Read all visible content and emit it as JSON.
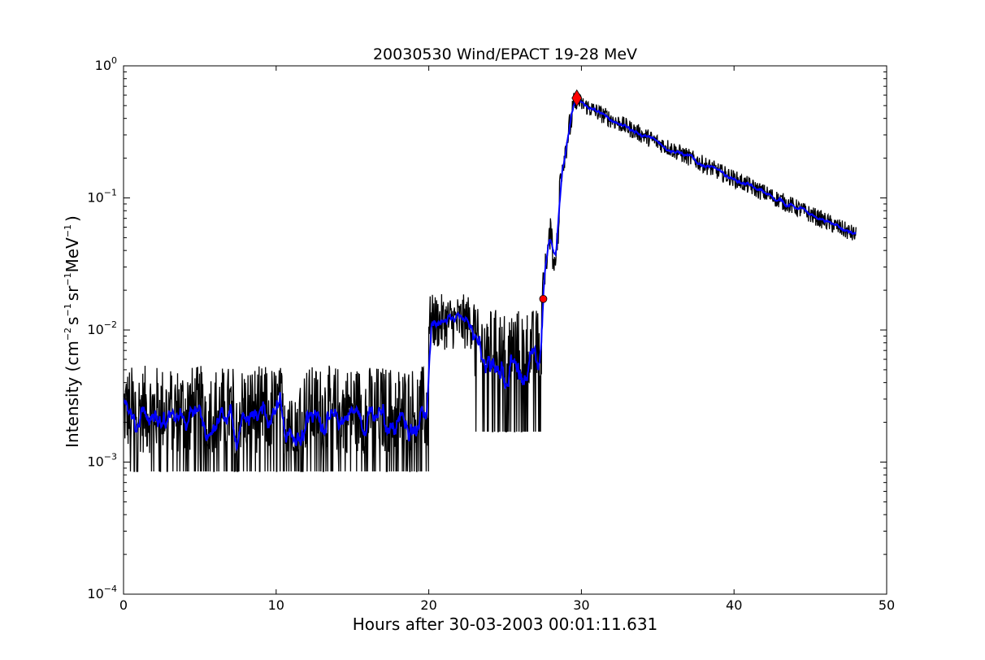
{
  "chart_data": {
    "type": "line",
    "title": "20030530 Wind/EPACT 19-28 MeV",
    "xlabel": "Hours after 30-03-2003 00:01:11.631",
    "ylabel_parts": {
      "prefix": "Intensity (cm",
      "exp1": "−2",
      "s": "s",
      "exp2": "−1",
      "sr": "sr",
      "exp3": "−1",
      "mev": "MeV",
      "exp4": "−1",
      "suffix": ")"
    },
    "xlim": [
      0,
      50
    ],
    "ylim": [
      0.0001,
      1
    ],
    "yscale": "log",
    "x_ticks": [
      {
        "value": 0,
        "label": "0"
      },
      {
        "value": 10,
        "label": "10"
      },
      {
        "value": 20,
        "label": "20"
      },
      {
        "value": 30,
        "label": "30"
      },
      {
        "value": 40,
        "label": "40"
      },
      {
        "value": 50,
        "label": "50"
      }
    ],
    "y_ticks": [
      {
        "value": 0.0001,
        "base": "10",
        "exp": "−4"
      },
      {
        "value": 0.001,
        "base": "10",
        "exp": "−3"
      },
      {
        "value": 0.01,
        "base": "10",
        "exp": "−2"
      },
      {
        "value": 0.1,
        "base": "10",
        "exp": "−1"
      },
      {
        "value": 1,
        "base": "10",
        "exp": "0"
      }
    ],
    "series": [
      {
        "color": "#000000",
        "style": "raw",
        "segments": [
          {
            "x": [
              0,
              20
            ],
            "level": 0.0025,
            "spread": 0.35,
            "min_floor": 0.00085
          },
          {
            "x": [
              20,
              23
            ],
            "level": 0.0115,
            "spread": 0.22
          },
          {
            "x": [
              23,
              27.4
            ],
            "level": 0.0075,
            "spread": 0.3,
            "min_floor": 0.0017
          },
          {
            "x": [
              27.4,
              29.6
            ],
            "rise_to": 0.55,
            "spread": 0.12
          },
          {
            "x": [
              29.6,
              48
            ],
            "decay_to": 0.052,
            "spread": 0.07
          }
        ]
      },
      {
        "color": "#0000ff",
        "style": "smoothed"
      }
    ],
    "markers": [
      {
        "type": "circle",
        "x": 27.5,
        "y": 0.0172,
        "color": "#ff0000"
      },
      {
        "type": "diamond",
        "x": 29.7,
        "y": 0.57,
        "color": "#ff0000"
      }
    ],
    "grid": false
  }
}
